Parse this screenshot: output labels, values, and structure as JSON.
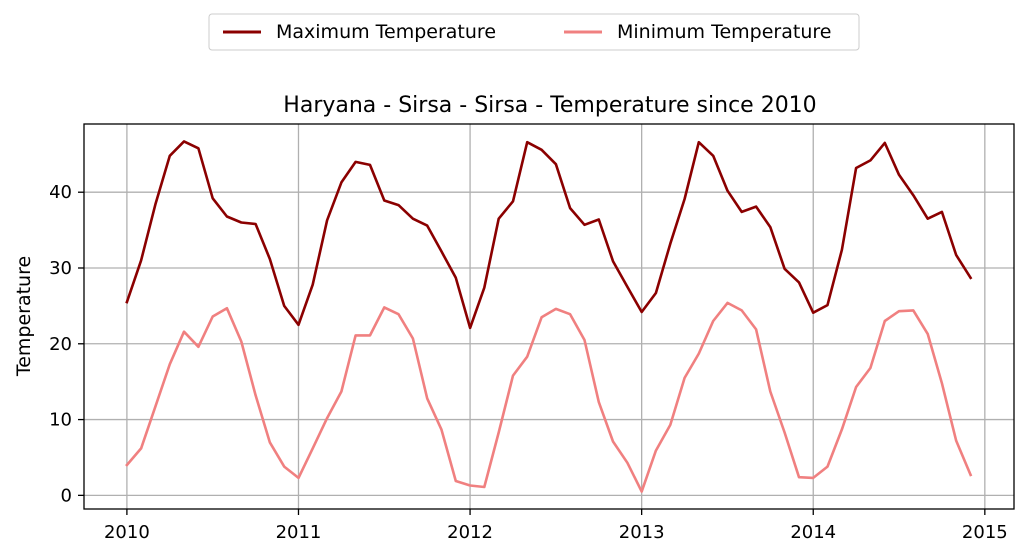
{
  "chart_data": {
    "type": "line",
    "title": "Haryana - Sirsa - Sirsa - Temperature since 2010",
    "xlabel": "",
    "ylabel": "Temperature",
    "xlim": [
      2009.75,
      2015.17
    ],
    "ylim": [
      -1.8,
      49.0
    ],
    "xticks": [
      2010,
      2011,
      2012,
      2013,
      2014,
      2015
    ],
    "yticks": [
      0,
      10,
      20,
      30,
      40
    ],
    "grid": true,
    "legend_position": "top-center",
    "x": [
      2010.0,
      2010.083,
      2010.167,
      2010.25,
      2010.333,
      2010.417,
      2010.5,
      2010.583,
      2010.667,
      2010.75,
      2010.833,
      2010.917,
      2011.0,
      2011.083,
      2011.167,
      2011.25,
      2011.333,
      2011.417,
      2011.5,
      2011.583,
      2011.667,
      2011.75,
      2011.833,
      2011.917,
      2012.0,
      2012.083,
      2012.167,
      2012.25,
      2012.333,
      2012.417,
      2012.5,
      2012.583,
      2012.667,
      2012.75,
      2012.833,
      2012.917,
      2013.0,
      2013.083,
      2013.167,
      2013.25,
      2013.333,
      2013.417,
      2013.5,
      2013.583,
      2013.667,
      2013.75,
      2013.833,
      2013.917,
      2014.0,
      2014.083,
      2014.167,
      2014.25,
      2014.333,
      2014.417,
      2014.5,
      2014.583,
      2014.667,
      2014.75,
      2014.833,
      2014.917
    ],
    "series": [
      {
        "name": "Maximum Temperature",
        "color": "#8b0000",
        "values": [
          25.5,
          31.0,
          38.5,
          44.8,
          46.7,
          45.8,
          39.2,
          36.8,
          36.0,
          35.8,
          31.2,
          25.0,
          22.5,
          27.8,
          36.3,
          41.3,
          44.0,
          43.6,
          38.9,
          38.3,
          36.5,
          35.6,
          32.2,
          28.7,
          22.1,
          27.4,
          36.5,
          38.8,
          46.6,
          45.6,
          43.7,
          37.9,
          35.7,
          36.4,
          30.9,
          27.5,
          24.2,
          26.7,
          33.2,
          39.1,
          46.6,
          44.8,
          40.2,
          37.4,
          38.1,
          35.4,
          29.9,
          28.1,
          24.1,
          25.1,
          32.4,
          43.2,
          44.2,
          46.5,
          42.3,
          39.6,
          36.5,
          37.4,
          31.7,
          28.7
        ]
      },
      {
        "name": "Minimum Temperature",
        "color": "#f08080",
        "values": [
          4.0,
          6.2,
          11.8,
          17.3,
          21.6,
          19.6,
          23.6,
          24.7,
          20.3,
          13.2,
          7.0,
          3.8,
          2.3,
          6.2,
          10.2,
          13.7,
          21.1,
          21.1,
          24.8,
          23.9,
          20.7,
          12.8,
          8.7,
          1.9,
          1.3,
          1.1,
          8.3,
          15.8,
          18.3,
          23.5,
          24.6,
          23.9,
          20.5,
          12.3,
          7.1,
          4.3,
          0.5,
          5.9,
          9.3,
          15.5,
          18.7,
          23.0,
          25.4,
          24.4,
          21.9,
          13.7,
          8.3,
          2.4,
          2.3,
          3.8,
          8.7,
          14.3,
          16.8,
          23.0,
          24.3,
          24.4,
          21.3,
          14.8,
          7.2,
          2.7
        ]
      }
    ]
  }
}
